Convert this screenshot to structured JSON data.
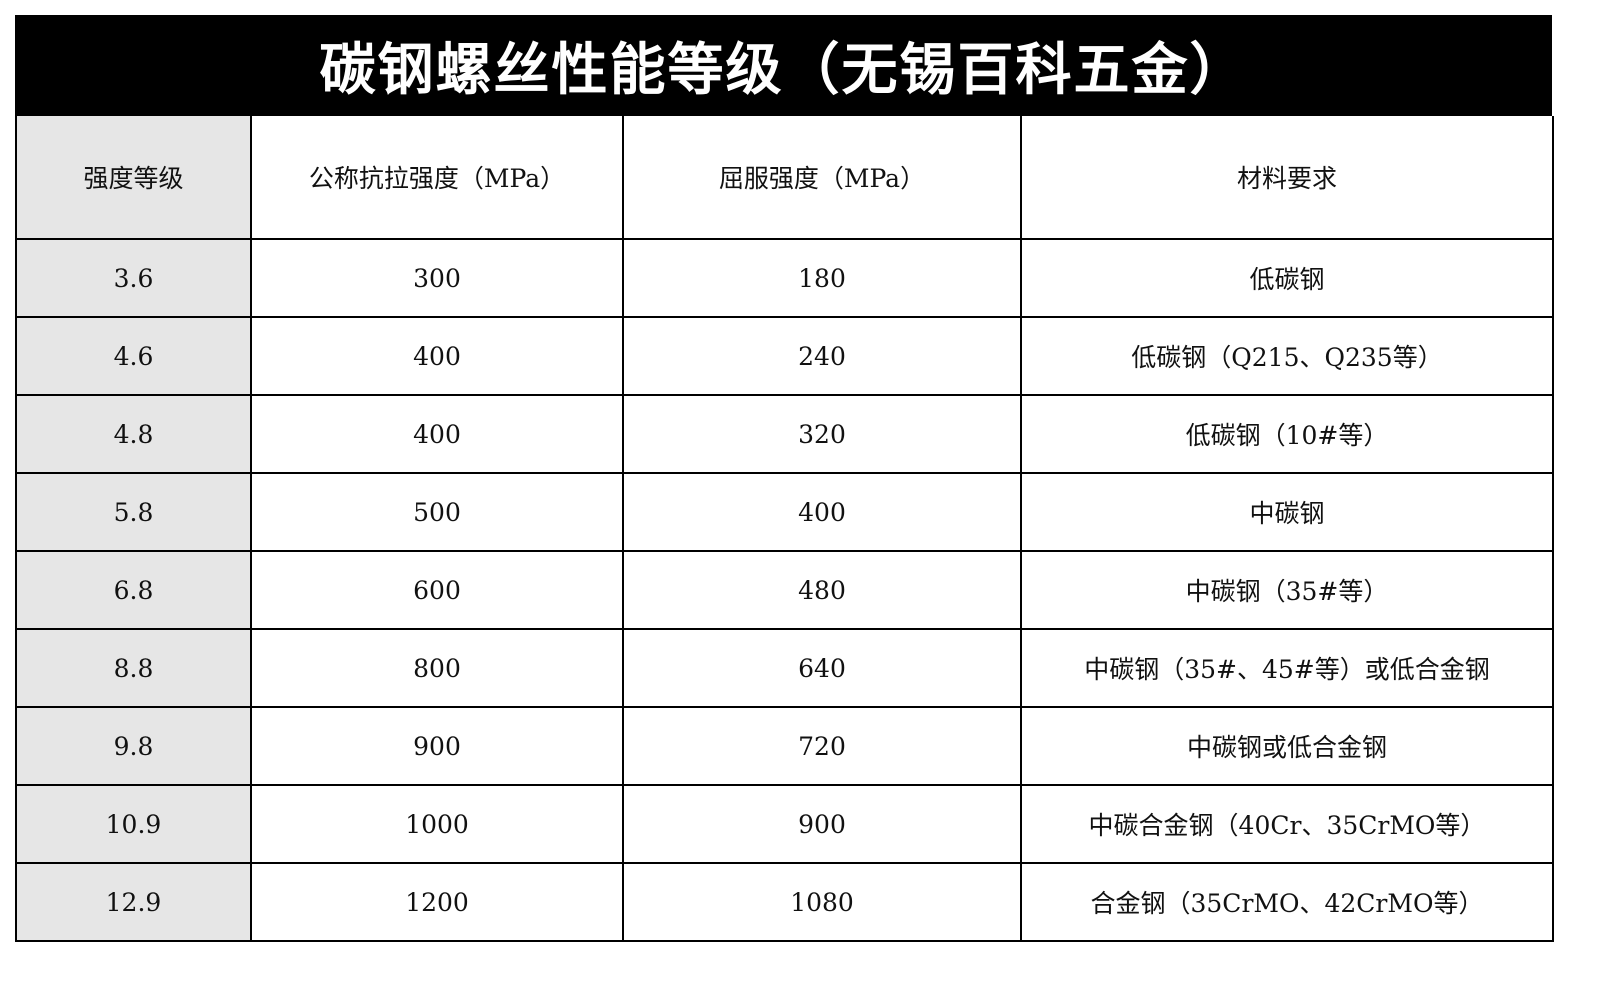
{
  "title": "碳钢螺丝性能等级（无锡百科五金）",
  "columns": [
    "强度等级",
    "公称抗拉强度（MPa）",
    "屈服强度（MPa）",
    "材料要求"
  ],
  "rows": [
    [
      "3.6",
      "300",
      "180",
      "低碳钢"
    ],
    [
      "4.6",
      "400",
      "240",
      "低碳钢（Q215、Q235等）"
    ],
    [
      "4.8",
      "400",
      "320",
      "低碳钢（10#等）"
    ],
    [
      "5.8",
      "500",
      "400",
      "中碳钢"
    ],
    [
      "6.8",
      "600",
      "480",
      "中碳钢（35#等）"
    ],
    [
      "8.8",
      "800",
      "640",
      "中碳钢（35#、45#等）或低合金钢"
    ],
    [
      "9.8",
      "900",
      "720",
      "中碳钢或低合金钢"
    ],
    [
      "10.9",
      "1000",
      "900",
      "中碳合金钢（40Cr、35CrMO等）"
    ],
    [
      "12.9",
      "1200",
      "1080",
      "合金钢（35CrMO、42CrMO等）"
    ]
  ],
  "colors": {
    "title_bg": "#000000",
    "title_text": "#ffffff",
    "first_col_bg": "#e6e6e6"
  }
}
